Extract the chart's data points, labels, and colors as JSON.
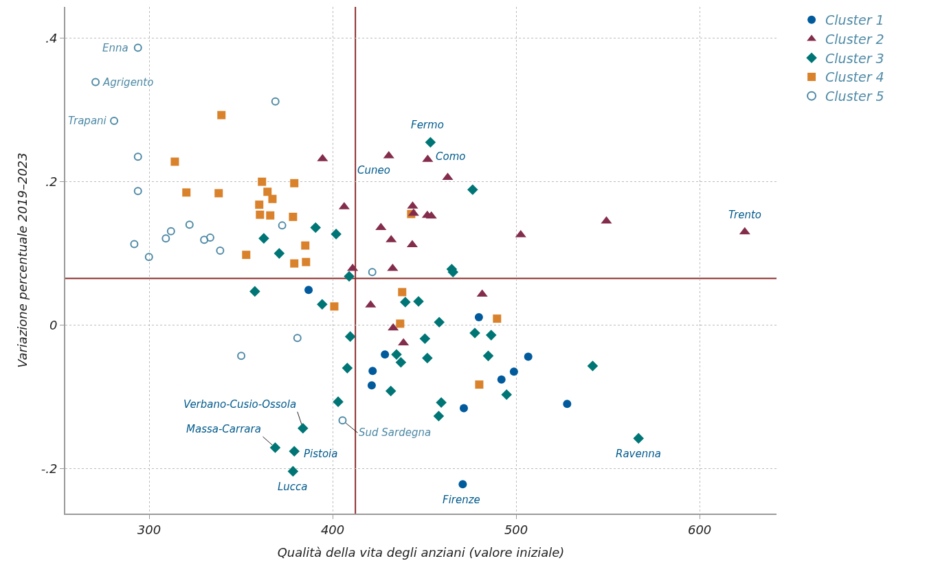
{
  "chart_data": {
    "type": "scatter",
    "xlabel": "Qualità della vita degli anziani (valore iniziale)",
    "ylabel": "Variazione percentuale 2019–2023",
    "xlim": [
      254.3,
      641.9
    ],
    "ylim": [
      -0.263,
      0.444
    ],
    "xticks": [
      300,
      400,
      500,
      600
    ],
    "yticks": [
      {
        "value": -0.2,
        "label": "-.2"
      },
      0,
      {
        "value": 0.2,
        "label": ".2"
      },
      {
        "value": 0.4,
        "label": ".4"
      }
    ],
    "grid": true,
    "legend": "top right",
    "ref_lines": [
      {
        "axis": "x",
        "value": 412.4,
        "color": "#8b2a2a"
      },
      {
        "axis": "y",
        "value": 0.065,
        "color": "#8b2a2a"
      }
    ],
    "series": [
      {
        "name": "Cluster 1",
        "color": "#005a9c",
        "marker": "circle",
        "x": [
          386.9,
          479.7,
          428.5,
          506.6,
          421.8,
          498.8,
          492.0,
          421.3,
          471.5,
          527.8,
          470.9
        ],
        "values": [
          0.049,
          0.011,
          -0.041,
          -0.044,
          -0.064,
          -0.065,
          -0.076,
          -0.084,
          -0.116,
          -0.11,
          -0.222
        ]
      },
      {
        "name": "Cluster 2",
        "color": "#832c4c",
        "marker": "triangle",
        "x": [
          394.5,
          430.6,
          451.8,
          462.7,
          406.3,
          443.6,
          444.1,
          451.6,
          453.8,
          426.3,
          431.9,
          443.4,
          410.9,
          432.7,
          420.7,
          481.5,
          433.0,
          438.6,
          502.5,
          549.2,
          624.6
        ],
        "values": [
          0.232,
          0.236,
          0.231,
          0.206,
          0.165,
          0.166,
          0.156,
          0.153,
          0.152,
          0.136,
          0.119,
          0.112,
          0.079,
          0.079,
          0.028,
          0.043,
          -0.004,
          -0.025,
          0.126,
          0.145,
          0.13
        ]
      },
      {
        "name": "Cluster 3",
        "color": "#007575",
        "marker": "diamond",
        "x": [
          390.7,
          401.9,
          362.5,
          370.9,
          409.0,
          453.3,
          476.3,
          464.9,
          465.6,
          394.3,
          439.6,
          446.8,
          458.1,
          409.6,
          450.3,
          477.5,
          486.4,
          434.8,
          437.2,
          451.6,
          484.8,
          408.0,
          431.7,
          494.8,
          459.2,
          457.8,
          403.0,
          357.6,
          383.8,
          368.7,
          379.1,
          378.4,
          541.7,
          566.7
        ],
        "values": [
          0.136,
          0.127,
          0.121,
          0.1,
          0.068,
          0.255,
          0.189,
          0.078,
          0.074,
          0.029,
          0.032,
          0.033,
          0.004,
          -0.016,
          -0.019,
          -0.011,
          -0.014,
          -0.041,
          -0.052,
          -0.046,
          -0.043,
          -0.06,
          -0.092,
          -0.097,
          -0.108,
          -0.127,
          -0.107,
          0.047,
          -0.144,
          -0.171,
          -0.176,
          -0.204,
          -0.057,
          -0.158
        ]
      },
      {
        "name": "Cluster 4",
        "color": "#d9822b",
        "marker": "square",
        "x": [
          339.4,
          314.0,
          361.5,
          379.1,
          320.3,
          337.9,
          364.5,
          367.2,
          360.0,
          360.4,
          366.0,
          378.4,
          385.1,
          352.9,
          379.1,
          385.5,
          442.8,
          400.9,
          437.9,
          436.8,
          489.6,
          479.9
        ],
        "values": [
          0.293,
          0.228,
          0.2,
          0.198,
          0.185,
          0.184,
          0.186,
          0.176,
          0.168,
          0.154,
          0.153,
          0.151,
          0.111,
          0.098,
          0.086,
          0.088,
          0.155,
          0.026,
          0.046,
          0.002,
          0.009,
          -0.083
        ]
      },
      {
        "name": "Cluster 5",
        "color": "#4f8aa6",
        "marker": "circle-open",
        "x": [
          293.9,
          270.8,
          280.9,
          368.8,
          293.9,
          293.9,
          322.0,
          372.5,
          311.9,
          309.1,
          330.0,
          333.3,
          291.9,
          338.7,
          299.9,
          421.6,
          380.8,
          405.4,
          350.2
        ],
        "values": [
          0.387,
          0.339,
          0.285,
          0.312,
          0.235,
          0.187,
          0.14,
          0.139,
          0.131,
          0.121,
          0.119,
          0.122,
          0.113,
          0.104,
          0.095,
          0.074,
          -0.018,
          -0.133,
          -0.043
        ]
      }
    ],
    "annotations": [
      {
        "text": "Enna",
        "x": 293.9,
        "y": 0.387
      },
      {
        "text": "Agrigento",
        "x": 270.8,
        "y": 0.339
      },
      {
        "text": "Trapani",
        "x": 280.9,
        "y": 0.285
      },
      {
        "text": "Fermo",
        "x": 453.3,
        "y": 0.255
      },
      {
        "text": "Cuneo",
        "x": 430.6,
        "y": 0.236
      },
      {
        "text": "Como",
        "x": 451.8,
        "y": 0.231
      },
      {
        "text": "Trento",
        "x": 624.6,
        "y": 0.13
      },
      {
        "text": "Verbano-Cusio-Ossola",
        "x": 383.8,
        "y": -0.144
      },
      {
        "text": "Massa-Carrara",
        "x": 368.7,
        "y": -0.171
      },
      {
        "text": "Pistoia",
        "x": 379.1,
        "y": -0.176
      },
      {
        "text": "Lucca",
        "x": 378.4,
        "y": -0.204
      },
      {
        "text": "Sud Sardegna",
        "x": 405.4,
        "y": -0.133
      },
      {
        "text": "Firenze",
        "x": 470.9,
        "y": -0.222
      },
      {
        "text": "Ravenna",
        "x": 566.7,
        "y": -0.158
      }
    ]
  }
}
